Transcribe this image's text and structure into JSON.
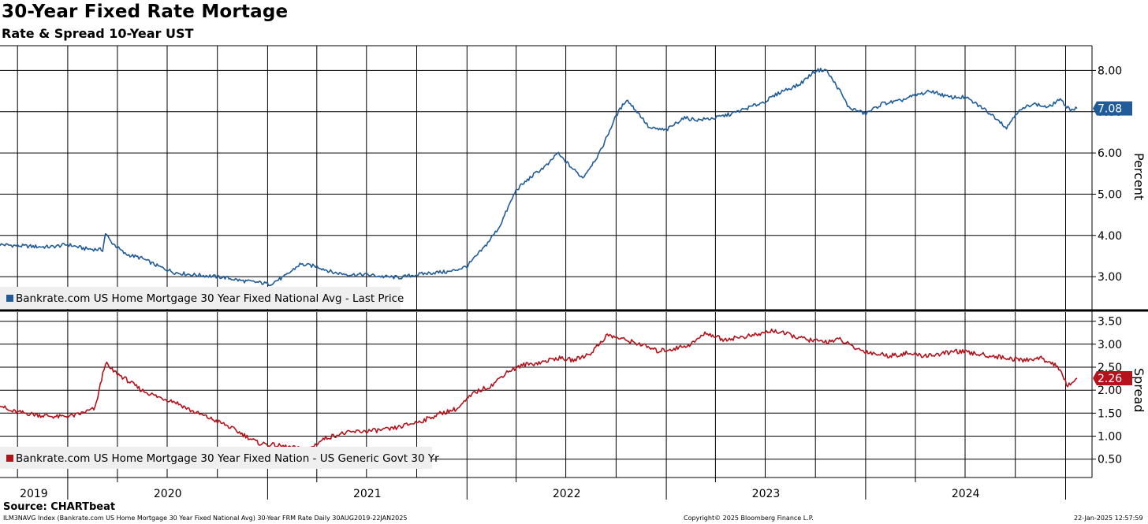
{
  "title": "30-Year Fixed Rate Mortage",
  "subtitle": "Rate & Spread 10-Year UST",
  "source": "Source: CHARTbeat",
  "footer": {
    "left": "ILM3NAVG Index (Bankrate.com US Home Mortgage 30 Year Fixed National Avg) 30-Year FRM Rate  Daily 30AUG2019-22JAN2025",
    "center": "Copyright© 2025 Bloomberg Finance L.P.",
    "right": "22-Jan-2025 12:57:59"
  },
  "colors": {
    "rate": "#1f5c99",
    "spread": "#b5121b",
    "grid": "#000000"
  },
  "chart_data": [
    {
      "type": "line",
      "panel": "top",
      "ylabel": "Percent",
      "ylim": [
        2.2,
        8.6
      ],
      "yticks": [
        "8.00",
        "7.00",
        "6.00",
        "5.00",
        "4.00",
        "3.00"
      ],
      "legend": "Bankrate.com US Home Mortgage 30 Year Fixed National Avg - Last Price",
      "last_value_label": "7.08",
      "series": [
        {
          "name": "Bankrate.com US Home Mortgage 30 Year Fixed National Avg - Last Price",
          "x": [
            "2019-08-30",
            "2019-10-01",
            "2019-11-01",
            "2019-12-01",
            "2020-01-01",
            "2020-02-01",
            "2020-03-05",
            "2020-03-10",
            "2020-03-20",
            "2020-04-15",
            "2020-05-15",
            "2020-06-15",
            "2020-07-15",
            "2020-08-15",
            "2020-09-15",
            "2020-10-15",
            "2020-11-15",
            "2020-12-15",
            "2021-01-05",
            "2021-02-01",
            "2021-03-01",
            "2021-04-01",
            "2021-05-01",
            "2021-06-01",
            "2021-07-01",
            "2021-08-01",
            "2021-09-01",
            "2021-10-01",
            "2021-11-01",
            "2021-12-01",
            "2022-01-01",
            "2022-02-01",
            "2022-03-01",
            "2022-04-01",
            "2022-05-01",
            "2022-06-01",
            "2022-06-15",
            "2022-07-15",
            "2022-08-01",
            "2022-09-01",
            "2022-10-01",
            "2022-10-20",
            "2022-11-15",
            "2022-12-01",
            "2023-01-01",
            "2023-02-01",
            "2023-03-01",
            "2023-04-01",
            "2023-05-01",
            "2023-06-01",
            "2023-07-01",
            "2023-08-01",
            "2023-09-01",
            "2023-10-01",
            "2023-10-20",
            "2023-11-15",
            "2023-12-01",
            "2024-01-01",
            "2024-02-01",
            "2024-03-01",
            "2024-04-01",
            "2024-05-01",
            "2024-06-01",
            "2024-07-01",
            "2024-08-01",
            "2024-09-01",
            "2024-09-15",
            "2024-10-01",
            "2024-11-01",
            "2024-12-01",
            "2024-12-20",
            "2025-01-10",
            "2025-01-22"
          ],
          "values": [
            3.78,
            3.75,
            3.73,
            3.72,
            3.78,
            3.68,
            3.65,
            4.05,
            3.85,
            3.55,
            3.45,
            3.25,
            3.1,
            3.05,
            3.02,
            2.98,
            2.9,
            2.86,
            2.82,
            3.0,
            3.3,
            3.25,
            3.1,
            3.05,
            3.05,
            3.0,
            2.98,
            3.05,
            3.1,
            3.12,
            3.25,
            3.7,
            4.2,
            5.1,
            5.45,
            5.75,
            6.0,
            5.6,
            5.4,
            6.0,
            6.9,
            7.3,
            6.9,
            6.6,
            6.55,
            6.85,
            6.8,
            6.85,
            6.95,
            7.1,
            7.25,
            7.5,
            7.65,
            8.0,
            8.02,
            7.5,
            7.1,
            6.95,
            7.2,
            7.25,
            7.4,
            7.5,
            7.35,
            7.35,
            7.1,
            6.8,
            6.6,
            6.95,
            7.2,
            7.1,
            7.3,
            7.05,
            7.08
          ]
        }
      ]
    },
    {
      "type": "line",
      "panel": "bottom",
      "ylabel": "Spread",
      "ylim": [
        0.1,
        3.7
      ],
      "yticks": [
        "3.50",
        "3.00",
        "2.50",
        "2.00",
        "1.50",
        "1.00",
        "0.50"
      ],
      "legend": "Bankrate.com US Home Mortgage 30 Year Fixed Nation - US Generic Govt 30 Yr",
      "last_value_label": "2.26",
      "series": [
        {
          "name": "Bankrate.com US Home Mortgage 30 Year Fixed Nation - US Generic Govt 30 Yr",
          "x": [
            "2019-08-30",
            "2019-09-15",
            "2019-10-15",
            "2019-11-15",
            "2019-12-15",
            "2020-01-15",
            "2020-02-20",
            "2020-03-10",
            "2020-03-20",
            "2020-04-15",
            "2020-05-15",
            "2020-06-15",
            "2020-07-15",
            "2020-08-15",
            "2020-09-15",
            "2020-10-15",
            "2020-11-15",
            "2020-12-15",
            "2021-01-15",
            "2021-02-15",
            "2021-03-15",
            "2021-04-15",
            "2021-05-15",
            "2021-06-15",
            "2021-07-15",
            "2021-08-15",
            "2021-09-15",
            "2021-10-15",
            "2021-11-15",
            "2021-12-15",
            "2022-01-15",
            "2022-02-15",
            "2022-03-15",
            "2022-04-15",
            "2022-05-15",
            "2022-06-15",
            "2022-07-15",
            "2022-08-15",
            "2022-09-15",
            "2022-10-15",
            "2022-11-15",
            "2022-12-15",
            "2023-01-15",
            "2023-02-15",
            "2023-03-15",
            "2023-04-15",
            "2023-05-15",
            "2023-06-15",
            "2023-07-15",
            "2023-08-15",
            "2023-09-15",
            "2023-10-15",
            "2023-11-15",
            "2023-12-15",
            "2024-01-15",
            "2024-02-15",
            "2024-03-15",
            "2024-04-15",
            "2024-05-15",
            "2024-06-15",
            "2024-07-15",
            "2024-08-15",
            "2024-09-15",
            "2024-10-15",
            "2024-11-15",
            "2024-12-15",
            "2025-01-05",
            "2025-01-22"
          ],
          "values": [
            1.7,
            1.55,
            1.5,
            1.45,
            1.42,
            1.45,
            1.6,
            2.6,
            2.45,
            2.25,
            2.0,
            1.85,
            1.75,
            1.55,
            1.4,
            1.25,
            1.05,
            0.85,
            0.8,
            0.75,
            0.7,
            0.95,
            1.05,
            1.1,
            1.12,
            1.15,
            1.25,
            1.35,
            1.5,
            1.6,
            1.95,
            2.1,
            2.4,
            2.55,
            2.6,
            2.7,
            2.65,
            2.8,
            3.2,
            3.1,
            3.0,
            2.85,
            2.9,
            3.0,
            3.25,
            3.1,
            3.15,
            3.2,
            3.3,
            3.2,
            3.1,
            3.05,
            3.1,
            2.9,
            2.8,
            2.75,
            2.8,
            2.75,
            2.78,
            2.85,
            2.8,
            2.75,
            2.7,
            2.65,
            2.7,
            2.55,
            2.1,
            2.26
          ]
        }
      ]
    }
  ],
  "x_axis": {
    "years": [
      "2019",
      "2020",
      "2021",
      "2022",
      "2023",
      "2024"
    ]
  }
}
